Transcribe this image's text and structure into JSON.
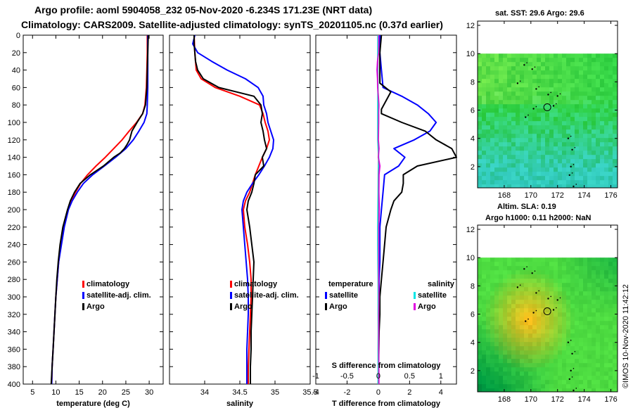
{
  "header": {
    "line1": "Argo profile: aoml 5904058_232 05-Nov-2020 -6.234S 171.23E (NRT data)",
    "line2": "Climatology: CARS2009. Satellite-adjusted climatology: synTS_20201105.nc (0.37d earlier)"
  },
  "colors": {
    "climatology": "#ff0000",
    "satellite": "#0000ff",
    "argo": "#000000",
    "sat_salinity": "#00e5e5",
    "argo_salinity": "#e000e0"
  },
  "chart_data": [
    {
      "type": "line",
      "name": "temperature",
      "xlabel": "temperature (deg C)",
      "ylabel": "",
      "xlim": [
        3,
        33
      ],
      "ylim": [
        400,
        0
      ],
      "xticks": [
        "5",
        "10",
        "15",
        "20",
        "25",
        "30"
      ],
      "xtick_values": [
        5,
        10,
        15,
        20,
        25,
        30
      ],
      "yticks": [
        "0",
        "20",
        "40",
        "60",
        "80",
        "100",
        "120",
        "140",
        "160",
        "180",
        "200",
        "220",
        "240",
        "260",
        "280",
        "300",
        "320",
        "340",
        "360",
        "380",
        "400"
      ],
      "ytick_values": [
        0,
        20,
        40,
        60,
        80,
        100,
        120,
        140,
        160,
        180,
        200,
        220,
        240,
        260,
        280,
        300,
        320,
        340,
        360,
        380,
        400
      ],
      "legend": [
        "climatology",
        "satellite-adj. clim.",
        "Argo"
      ],
      "series": [
        {
          "name": "climatology",
          "color": "#ff0000",
          "depth": [
            0,
            20,
            40,
            60,
            80,
            90,
            100,
            110,
            120,
            130,
            140,
            150,
            160,
            170,
            180,
            190,
            200,
            220,
            240,
            260,
            280,
            300,
            320,
            340,
            360,
            380,
            400
          ],
          "values": [
            29.6,
            29.6,
            29.5,
            29.4,
            29.1,
            28.6,
            27.3,
            25.7,
            24.2,
            22.4,
            20.6,
            18.6,
            16.8,
            15.3,
            14.2,
            13.3,
            12.6,
            11.7,
            11.1,
            10.6,
            10.3,
            10.0,
            9.8,
            9.6,
            9.4,
            9.2,
            9.1
          ]
        },
        {
          "name": "satellite-adj. clim.",
          "color": "#0000ff",
          "depth": [
            0,
            20,
            40,
            60,
            80,
            90,
            100,
            110,
            120,
            130,
            140,
            150,
            160,
            170,
            180,
            190,
            200,
            220,
            240,
            260,
            280,
            300,
            320,
            340,
            360,
            380,
            400
          ],
          "values": [
            29.7,
            29.7,
            29.7,
            29.7,
            29.6,
            29.5,
            28.9,
            27.8,
            26.6,
            25.0,
            22.8,
            20.4,
            17.9,
            15.9,
            14.6,
            13.5,
            12.7,
            11.8,
            11.2,
            10.6,
            10.3,
            10.0,
            9.8,
            9.6,
            9.4,
            9.2,
            9.1
          ]
        },
        {
          "name": "Argo",
          "color": "#000000",
          "depth": [
            0,
            20,
            40,
            60,
            80,
            90,
            100,
            110,
            120,
            125,
            130,
            135,
            140,
            150,
            160,
            170,
            180,
            190,
            200,
            220,
            240,
            260,
            280,
            300,
            320,
            340,
            360,
            380,
            400
          ],
          "values": [
            29.8,
            29.7,
            29.6,
            29.5,
            29.2,
            28.6,
            27.4,
            26.3,
            25.8,
            25.3,
            24.7,
            23.8,
            22.4,
            20.2,
            17.4,
            15.2,
            14.0,
            13.1,
            12.5,
            11.5,
            10.9,
            10.5,
            10.2,
            10.0,
            9.8,
            9.6,
            9.4,
            9.2,
            9.0
          ]
        }
      ]
    },
    {
      "type": "line",
      "name": "salinity",
      "xlabel": "salinity",
      "ylabel": "",
      "xlim": [
        33.5,
        35.5
      ],
      "ylim": [
        400,
        0
      ],
      "xticks": [
        "34",
        "34.5",
        "35",
        "35.5"
      ],
      "xtick_values": [
        34,
        34.5,
        35,
        35.5
      ],
      "legend": [
        "climatology",
        "satellite-adj. clim.",
        "Argo"
      ],
      "series": [
        {
          "name": "climatology",
          "color": "#ff0000",
          "depth": [
            0,
            20,
            40,
            50,
            60,
            70,
            80,
            90,
            100,
            110,
            120,
            130,
            140,
            150,
            160,
            170,
            180,
            190,
            200,
            220,
            240,
            260,
            280,
            300,
            320,
            340,
            360,
            380,
            400
          ],
          "values": [
            33.85,
            33.86,
            33.88,
            33.95,
            34.15,
            34.5,
            34.78,
            34.83,
            34.86,
            34.9,
            34.92,
            34.88,
            34.82,
            34.77,
            34.72,
            34.68,
            34.64,
            34.58,
            34.55,
            34.57,
            34.61,
            34.64,
            34.66,
            34.66,
            34.65,
            34.64,
            34.63,
            34.62,
            34.62
          ]
        },
        {
          "name": "satellite-adj. clim.",
          "color": "#0000ff",
          "depth": [
            0,
            10,
            20,
            30,
            40,
            50,
            60,
            70,
            80,
            90,
            100,
            110,
            120,
            130,
            140,
            150,
            160,
            170,
            180,
            190,
            200,
            210,
            220,
            240,
            260,
            280,
            300,
            320,
            340,
            360,
            380,
            400
          ],
          "values": [
            33.86,
            33.83,
            33.9,
            34.1,
            34.32,
            34.58,
            34.76,
            34.83,
            34.84,
            34.88,
            34.9,
            34.94,
            34.98,
            34.97,
            34.92,
            34.85,
            34.77,
            34.68,
            34.6,
            34.55,
            34.53,
            34.54,
            34.55,
            34.57,
            34.59,
            34.61,
            34.62,
            34.62,
            34.61,
            34.6,
            34.6,
            34.6
          ]
        },
        {
          "name": "Argo",
          "color": "#000000",
          "depth": [
            0,
            10,
            20,
            30,
            40,
            50,
            60,
            70,
            80,
            90,
            100,
            110,
            120,
            130,
            140,
            150,
            160,
            170,
            180,
            190,
            200,
            220,
            240,
            260,
            280,
            300,
            320,
            340,
            360,
            380,
            400
          ],
          "values": [
            33.85,
            33.85,
            33.86,
            33.87,
            33.9,
            33.98,
            34.2,
            34.7,
            34.8,
            34.82,
            34.8,
            34.83,
            34.85,
            34.88,
            34.82,
            34.84,
            34.72,
            34.7,
            34.67,
            34.62,
            34.6,
            34.64,
            34.67,
            34.7,
            34.69,
            34.68,
            34.67,
            34.66,
            34.66,
            34.65,
            34.65
          ]
        }
      ]
    },
    {
      "type": "line",
      "name": "differences",
      "xlabel": "T difference from climatology",
      "xlabel_top": "S difference from climatology",
      "xlim": [
        -4,
        5
      ],
      "ylim": [
        400,
        0
      ],
      "xticks": [
        "-4",
        "-2",
        "0",
        "2",
        "4"
      ],
      "xtick_values": [
        -4,
        -2,
        0,
        2,
        4
      ],
      "xticks_top": [
        "-1",
        "-0.5",
        "0",
        "0.5",
        "1"
      ],
      "legend_left_title": "temperature",
      "legend_right_title": "salinity",
      "legend_left": [
        "satellite",
        "Argo"
      ],
      "legend_right": [
        "satellite",
        "Argo"
      ],
      "series": [
        {
          "name": "temperature satellite",
          "color": "#0000ff",
          "depth": [
            0,
            20,
            40,
            60,
            70,
            80,
            90,
            100,
            110,
            120,
            130,
            140,
            150,
            160,
            180,
            200,
            220,
            240,
            260,
            280,
            300,
            320,
            340,
            360,
            380,
            400
          ],
          "values": [
            0.1,
            0.1,
            0.2,
            0.3,
            1.5,
            2.5,
            3.2,
            3.7,
            3.3,
            2.3,
            1.0,
            1.7,
            1.3,
            0.4,
            0.3,
            0.2,
            0.1,
            0.1,
            0.1,
            0.05,
            0.05,
            0.03,
            0.02,
            0.01,
            0.01,
            0.0
          ]
        },
        {
          "name": "temperature Argo",
          "color": "#000000",
          "depth": [
            0,
            20,
            40,
            55,
            65,
            75,
            85,
            90,
            100,
            110,
            120,
            130,
            140,
            150,
            160,
            170,
            180,
            190,
            200,
            220,
            240,
            260,
            280,
            300,
            320,
            340,
            360,
            380,
            400
          ],
          "values": [
            0.2,
            0.1,
            0.1,
            0.1,
            0.8,
            0.5,
            0.2,
            0.2,
            1.5,
            3.0,
            3.7,
            4.7,
            5.0,
            2.5,
            1.6,
            1.6,
            1.5,
            1.0,
            0.8,
            0.5,
            0.4,
            0.3,
            0.2,
            0.1,
            0.1,
            0.05,
            0.03,
            0.02,
            0.0
          ]
        },
        {
          "name": "salinity satellite",
          "color": "#00e5e5",
          "depth": [
            0,
            20,
            40,
            60,
            80,
            100,
            120,
            140,
            160,
            180,
            200,
            220,
            240,
            260,
            280,
            300,
            320,
            340,
            360,
            380,
            400
          ],
          "values": [
            -0.02,
            -0.03,
            -0.04,
            -0.02,
            -0.03,
            -0.03,
            -0.03,
            0.02,
            0.0,
            -0.01,
            -0.02,
            -0.03,
            -0.03,
            -0.02,
            -0.01,
            -0.01,
            -0.01,
            0.0,
            -0.01,
            -0.01,
            -0.01
          ]
        },
        {
          "name": "salinity Argo",
          "color": "#e000e0",
          "depth": [
            0,
            20,
            30,
            40,
            50,
            60,
            70,
            80,
            90,
            100,
            110,
            120,
            130,
            140,
            150,
            160,
            180,
            200,
            220,
            240,
            260,
            280,
            300,
            320,
            340,
            360,
            380,
            400
          ],
          "values": [
            0.02,
            0.02,
            -0.05,
            -0.08,
            -0.05,
            -0.04,
            0.0,
            0.03,
            0.02,
            0.02,
            0.01,
            0.0,
            0.04,
            0.0,
            0.1,
            0.04,
            0.03,
            0.06,
            0.02,
            0.02,
            0.02,
            0.02,
            0.03,
            0.02,
            0.02,
            0.02,
            0.03,
            0.03
          ]
        }
      ]
    },
    {
      "type": "heatmap",
      "name": "sst-map",
      "title": "sat. SST: 29.6 Argo: 29.6",
      "xticks": [
        "168",
        "170",
        "172",
        "174",
        "176"
      ],
      "yticks": [
        "2",
        "4",
        "6",
        "8",
        "10",
        "12"
      ],
      "xlim": [
        166,
        176.5
      ],
      "ylim": [
        0.5,
        12.3
      ],
      "data_ylim": [
        0.5,
        10
      ],
      "marker": {
        "lon": 171.23,
        "lat": 6.2
      }
    },
    {
      "type": "heatmap",
      "name": "sla-map",
      "title_line1": "Altim. SLA: 0.19",
      "title_line2": "Argo h1000: 0.11 h2000: NaN",
      "xticks": [
        "168",
        "170",
        "172",
        "174",
        "176"
      ],
      "yticks": [
        "2",
        "4",
        "6",
        "8",
        "10",
        "12"
      ],
      "xlim": [
        166,
        176.5
      ],
      "ylim": [
        0.5,
        12.3
      ],
      "data_ylim": [
        0.5,
        10
      ],
      "marker": {
        "lon": 171.23,
        "lat": 6.2
      }
    }
  ],
  "footer": {
    "credit": "©IMOS 10-Nov-2020 11:42:12"
  }
}
